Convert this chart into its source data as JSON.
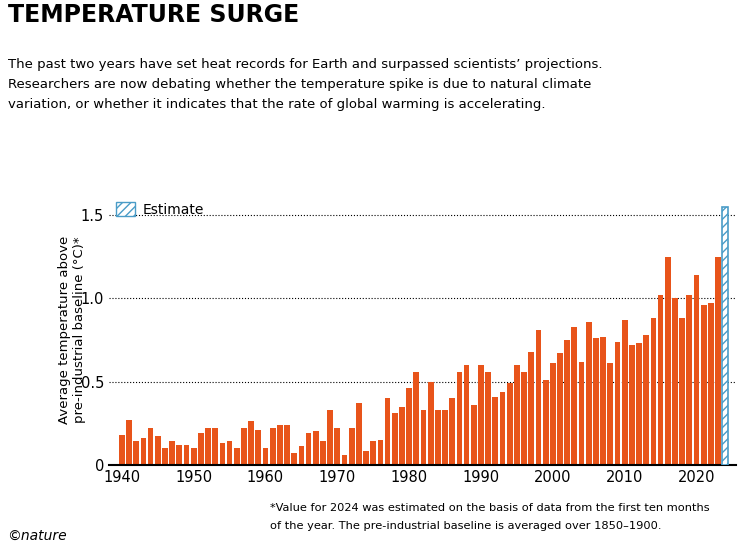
{
  "title": "TEMPERATURE SURGE",
  "subtitle_line1": "The past two years have set heat records for Earth and surpassed scientists’ projections.",
  "subtitle_line2": "Researchers are now debating whether the temperature spike is due to natural climate",
  "subtitle_line3": "variation, or whether it indicates that the rate of global warming is accelerating.",
  "ylabel": "Average temperature above\npre-industrial baseline (°C)*",
  "footnote_line1": "*Value for 2024 was estimated on the basis of data from the first ten months",
  "footnote_line2": "of the year. The pre-industrial baseline is averaged over 1850–1900.",
  "nature_credit": "©nature",
  "bar_color": "#E8541A",
  "estimate_color": "#4A9CC7",
  "years": [
    1940,
    1941,
    1942,
    1943,
    1944,
    1945,
    1946,
    1947,
    1948,
    1949,
    1950,
    1951,
    1952,
    1953,
    1954,
    1955,
    1956,
    1957,
    1958,
    1959,
    1960,
    1961,
    1962,
    1963,
    1964,
    1965,
    1966,
    1967,
    1968,
    1969,
    1970,
    1971,
    1972,
    1973,
    1974,
    1975,
    1976,
    1977,
    1978,
    1979,
    1980,
    1981,
    1982,
    1983,
    1984,
    1985,
    1986,
    1987,
    1988,
    1989,
    1990,
    1991,
    1992,
    1993,
    1994,
    1995,
    1996,
    1997,
    1998,
    1999,
    2000,
    2001,
    2002,
    2003,
    2004,
    2005,
    2006,
    2007,
    2008,
    2009,
    2010,
    2011,
    2012,
    2013,
    2014,
    2015,
    2016,
    2017,
    2018,
    2019,
    2020,
    2021,
    2022,
    2023,
    2024
  ],
  "values": [
    0.18,
    0.27,
    0.14,
    0.16,
    0.22,
    0.17,
    0.1,
    0.14,
    0.12,
    0.12,
    0.1,
    0.19,
    0.22,
    0.22,
    0.13,
    0.14,
    0.1,
    0.22,
    0.26,
    0.21,
    0.1,
    0.22,
    0.24,
    0.24,
    0.07,
    0.11,
    0.19,
    0.2,
    0.14,
    0.33,
    0.22,
    0.06,
    0.22,
    0.37,
    0.08,
    0.14,
    0.15,
    0.4,
    0.31,
    0.35,
    0.46,
    0.56,
    0.33,
    0.5,
    0.33,
    0.33,
    0.4,
    0.56,
    0.6,
    0.36,
    0.6,
    0.56,
    0.41,
    0.44,
    0.49,
    0.6,
    0.56,
    0.68,
    0.81,
    0.51,
    0.61,
    0.67,
    0.75,
    0.83,
    0.62,
    0.86,
    0.76,
    0.77,
    0.61,
    0.74,
    0.87,
    0.72,
    0.73,
    0.78,
    0.88,
    1.02,
    1.25,
    1.0,
    0.88,
    1.02,
    1.14,
    0.96,
    0.97,
    1.25,
    1.55
  ],
  "estimate_year": 2024,
  "ylim": [
    0,
    1.62
  ],
  "ytick_vals": [
    0,
    0.5,
    1.0,
    1.5
  ],
  "ytick_labels": [
    "0",
    "0.5",
    "1.0",
    "1.5"
  ],
  "xticks": [
    1940,
    1950,
    1960,
    1970,
    1980,
    1990,
    2000,
    2010,
    2020
  ],
  "xlim": [
    1938.2,
    2025.5
  ]
}
